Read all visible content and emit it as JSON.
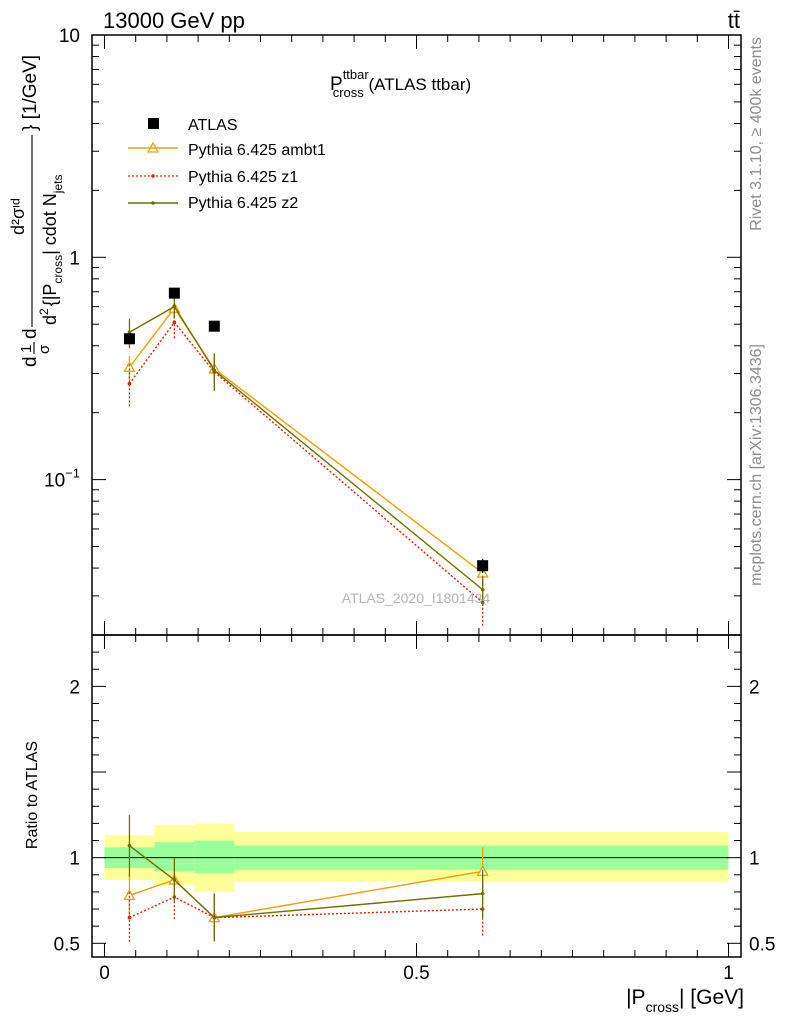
{
  "header": {
    "left": "13000 GeV pp",
    "right": "tt̄"
  },
  "side_text": {
    "rivet": "Rivet 3.1.10, ≥ 400k events",
    "mcplots": "mcplots.cern.ch [arXiv:1306.3436]"
  },
  "watermark": "ATLAS_2020_I1801434",
  "plot_title": {
    "main": "P",
    "sup": "ttbar",
    "sub": "cross",
    "suffix": " (ATLAS ttbar)"
  },
  "main_ylabel": {
    "front": "d",
    "frac_one": "1",
    "frac_sigma": "σ",
    "d2": "d",
    "d2_sup": "2",
    "sigma_id": "d²σᶦᵈ",
    "denom_a": "d",
    "denom_sup": "2",
    "denom_b": "{|P",
    "denom_sub": "cross",
    "denom_c": "| cdot N",
    "denom_sub2": "jets",
    "units": "} [1/GeV]"
  },
  "ratio_ylabel": "Ratio to ATLAS",
  "xlabel": {
    "a": "|P",
    "sub": "cross",
    "b": "| [GeV]"
  },
  "colors": {
    "atlas": "#000000",
    "ambt1": "#f0a000",
    "z1": "#e02000",
    "z2": "#707000",
    "band_inner": "#99ff99",
    "band_outer": "#ffff99"
  },
  "chart_data": [
    {
      "type": "scatter",
      "panel": "main",
      "yscale": "log",
      "xlim": [
        -0.02,
        1.02
      ],
      "ylim": [
        0.02,
        10
      ],
      "y_ticks": [
        {
          "v": 10,
          "label": "10"
        },
        {
          "v": 1,
          "label": "1"
        },
        {
          "v": 0.1,
          "label": "10",
          "sup": "−1"
        }
      ],
      "legend_position": "top-left",
      "series": [
        {
          "name": "ATLAS",
          "style": "data",
          "x": [
            0.04,
            0.112,
            0.176,
            0.606
          ],
          "y": [
            0.43,
            0.69,
            0.49,
            0.041
          ],
          "err": [
            0.02,
            0.02,
            0.015,
            0.003
          ]
        },
        {
          "name": "Pythia 6.425 ambt1",
          "style": "triangle",
          "x": [
            0.04,
            0.112,
            0.176,
            0.606
          ],
          "y": [
            0.32,
            0.59,
            0.315,
            0.038
          ],
          "err": [
            0.04,
            0.05,
            0.04,
            0.005
          ]
        },
        {
          "name": "Pythia 6.425 z1",
          "style": "dotted",
          "x": [
            0.04,
            0.112,
            0.176,
            0.606
          ],
          "y": [
            0.27,
            0.51,
            0.305,
            0.028
          ],
          "err": [
            0.06,
            0.08,
            0.05,
            0.006
          ]
        },
        {
          "name": "Pythia 6.425 z2",
          "style": "solid",
          "x": [
            0.04,
            0.112,
            0.176,
            0.606
          ],
          "y": [
            0.46,
            0.6,
            0.31,
            0.032
          ],
          "err": [
            0.07,
            0.07,
            0.06,
            0.005
          ]
        }
      ]
    },
    {
      "type": "line",
      "panel": "ratio",
      "xlim": [
        -0.02,
        1.02
      ],
      "ylim": [
        0.42,
        2.3
      ],
      "x_ticks": [
        {
          "v": 0,
          "label": "0"
        },
        {
          "v": 0.5,
          "label": "0.5"
        },
        {
          "v": 1,
          "label": "1"
        }
      ],
      "y_ticks": [
        {
          "v": 0.5,
          "label": "0.5"
        },
        {
          "v": 1,
          "label": "1"
        },
        {
          "v": 2,
          "label": "2"
        }
      ],
      "bands": [
        {
          "x0": 0.0,
          "x1": 0.08,
          "inner": [
            0.94,
            1.06
          ],
          "outer": [
            0.87,
            1.13
          ]
        },
        {
          "x0": 0.08,
          "x1": 0.144,
          "inner": [
            0.92,
            1.09
          ],
          "outer": [
            0.84,
            1.19
          ]
        },
        {
          "x0": 0.144,
          "x1": 0.208,
          "inner": [
            0.91,
            1.1
          ],
          "outer": [
            0.8,
            1.2
          ]
        },
        {
          "x0": 0.208,
          "x1": 1.0,
          "inner": [
            0.93,
            1.07
          ],
          "outer": [
            0.86,
            1.15
          ]
        }
      ],
      "series": [
        {
          "name": "Pythia 6.425 ambt1",
          "style": "triangle",
          "x": [
            0.04,
            0.112,
            0.176,
            0.606
          ],
          "y": [
            0.78,
            0.87,
            0.65,
            0.92
          ],
          "err": [
            0.12,
            0.12,
            0.13,
            0.14
          ]
        },
        {
          "name": "Pythia 6.425 z1",
          "style": "dotted",
          "x": [
            0.04,
            0.112,
            0.176,
            0.606
          ],
          "y": [
            0.65,
            0.77,
            0.65,
            0.7
          ],
          "err": [
            0.15,
            0.14,
            0.14,
            0.16
          ]
        },
        {
          "name": "Pythia 6.425 z2",
          "style": "solid",
          "x": [
            0.04,
            0.112,
            0.176,
            0.606
          ],
          "y": [
            1.07,
            0.87,
            0.65,
            0.79
          ],
          "err": [
            0.18,
            0.13,
            0.14,
            0.14
          ]
        }
      ]
    }
  ]
}
